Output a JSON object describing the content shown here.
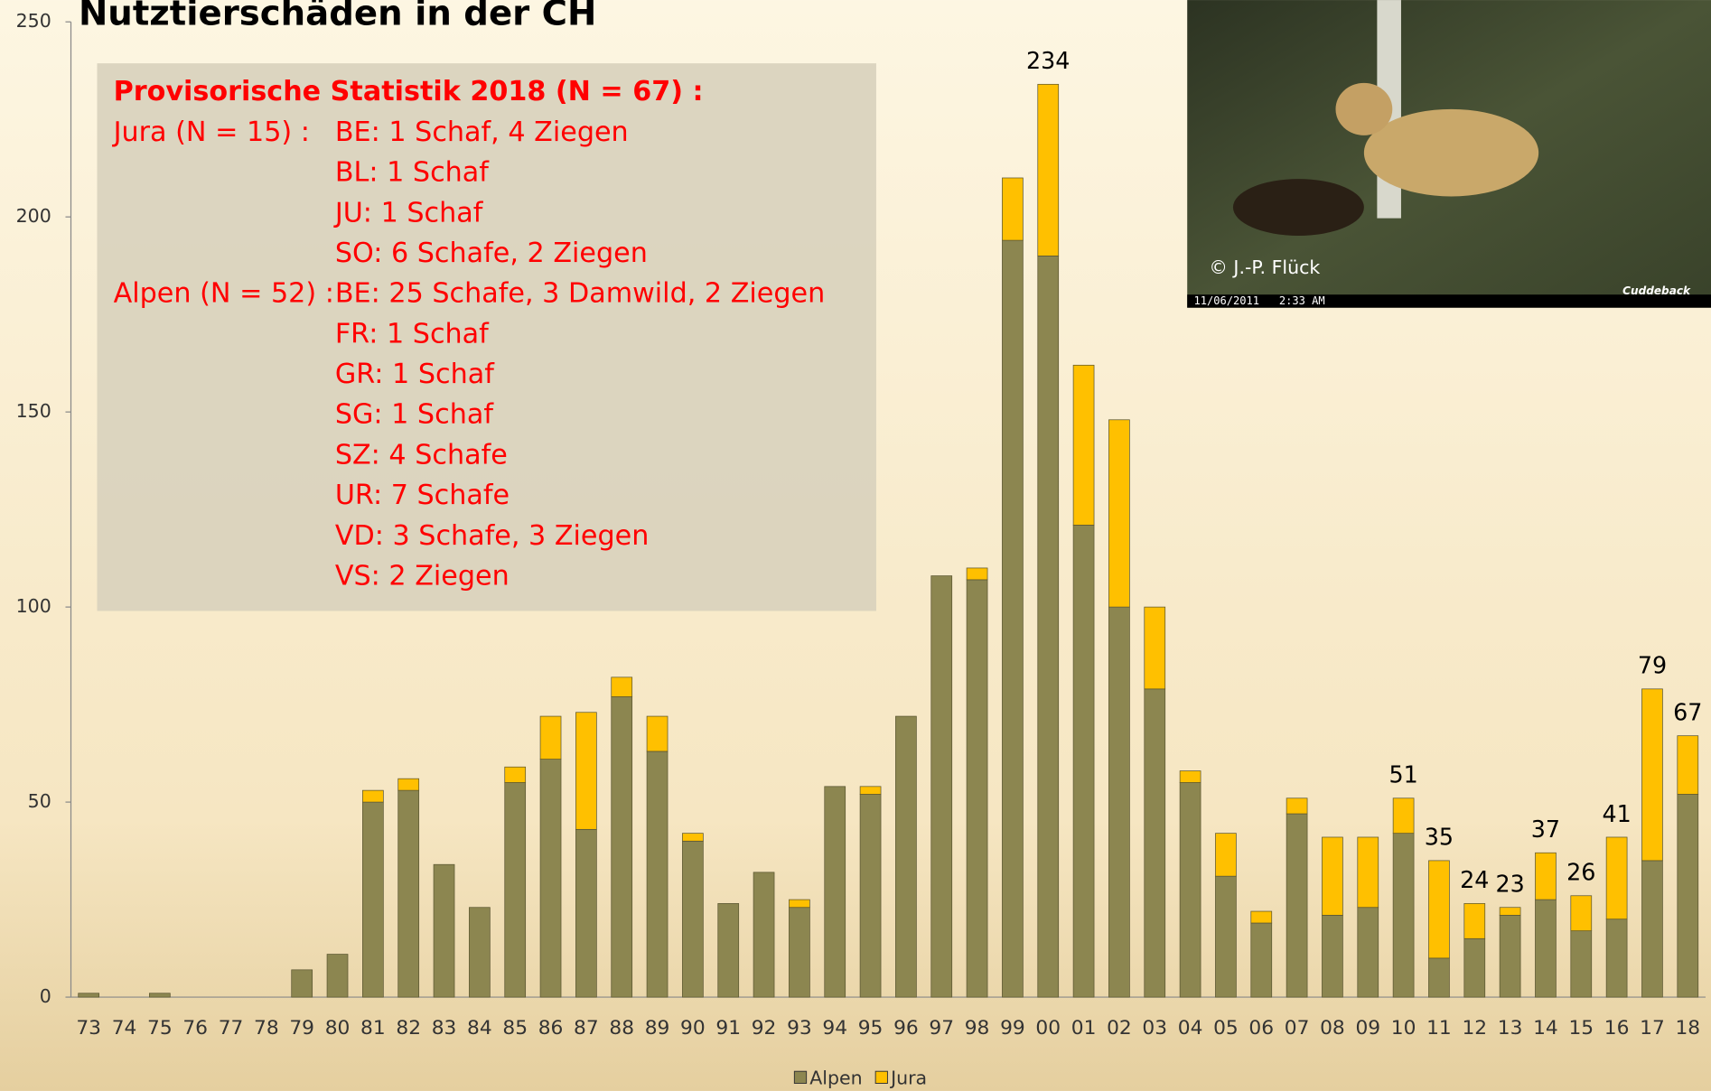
{
  "chart_data": {
    "type": "stacked_bar",
    "title": "Nutztierschäden in der CH",
    "categories": [
      "73",
      "74",
      "75",
      "76",
      "77",
      "78",
      "79",
      "80",
      "81",
      "82",
      "83",
      "84",
      "85",
      "86",
      "87",
      "88",
      "89",
      "90",
      "91",
      "92",
      "93",
      "94",
      "95",
      "96",
      "97",
      "98",
      "99",
      "00",
      "01",
      "02",
      "03",
      "04",
      "05",
      "06",
      "07",
      "08",
      "09",
      "10",
      "11",
      "12",
      "13",
      "14",
      "15",
      "16",
      "17",
      "18"
    ],
    "series": [
      {
        "name": "Alpen",
        "color": "#8c8650",
        "values": [
          1,
          0,
          1,
          0,
          0,
          0,
          7,
          11,
          50,
          53,
          34,
          23,
          55,
          61,
          43,
          77,
          63,
          40,
          24,
          32,
          23,
          54,
          52,
          72,
          108,
          107,
          194,
          190,
          121,
          100,
          79,
          55,
          31,
          19,
          47,
          21,
          23,
          42,
          10,
          15,
          21,
          25,
          17,
          20,
          35,
          52
        ]
      },
      {
        "name": "Jura",
        "color": "#ffc000",
        "values": [
          0,
          0,
          0,
          0,
          0,
          0,
          0,
          0,
          3,
          3,
          0,
          0,
          4,
          11,
          30,
          5,
          9,
          2,
          0,
          0,
          2,
          0,
          2,
          0,
          0,
          3,
          16,
          44,
          41,
          48,
          21,
          3,
          11,
          3,
          4,
          20,
          18,
          9,
          25,
          9,
          2,
          12,
          9,
          21,
          44,
          15
        ]
      }
    ],
    "total_labels": [
      null,
      null,
      null,
      null,
      null,
      null,
      null,
      null,
      null,
      null,
      null,
      null,
      null,
      null,
      null,
      null,
      null,
      null,
      null,
      null,
      null,
      null,
      null,
      null,
      null,
      null,
      null,
      234,
      null,
      null,
      null,
      null,
      null,
      null,
      null,
      null,
      null,
      51,
      35,
      24,
      23,
      37,
      26,
      41,
      79,
      67
    ],
    "ylim": [
      0,
      250
    ],
    "yticks": [
      0,
      50,
      100,
      150,
      200,
      250
    ],
    "legend": "bottom"
  },
  "info_box": {
    "heading": "Provisorische Statistik 2018 (N = 67) :",
    "groups": [
      {
        "label": "Jura (N = 15) :",
        "lines": [
          "BE: 1 Schaf, 4 Ziegen",
          "BL: 1 Schaf",
          "JU: 1 Schaf",
          "SO: 6 Schafe, 2 Ziegen"
        ]
      },
      {
        "label": "Alpen (N = 52) :",
        "lines": [
          "BE: 25 Schafe, 3 Damwild, 2 Ziegen",
          "FR: 1 Schaf",
          "GR: 1 Schaf",
          "SG: 1 Schaf",
          "SZ: 4 Schafe",
          "UR: 7 Schafe",
          "VD: 3 Schafe, 3 Ziegen",
          "VS: 2 Ziegen"
        ]
      }
    ]
  },
  "photo": {
    "credit": "© J.-P. Flück",
    "timestamp": "11/06/2011   2:33 AM",
    "brand": "Cuddeback"
  }
}
